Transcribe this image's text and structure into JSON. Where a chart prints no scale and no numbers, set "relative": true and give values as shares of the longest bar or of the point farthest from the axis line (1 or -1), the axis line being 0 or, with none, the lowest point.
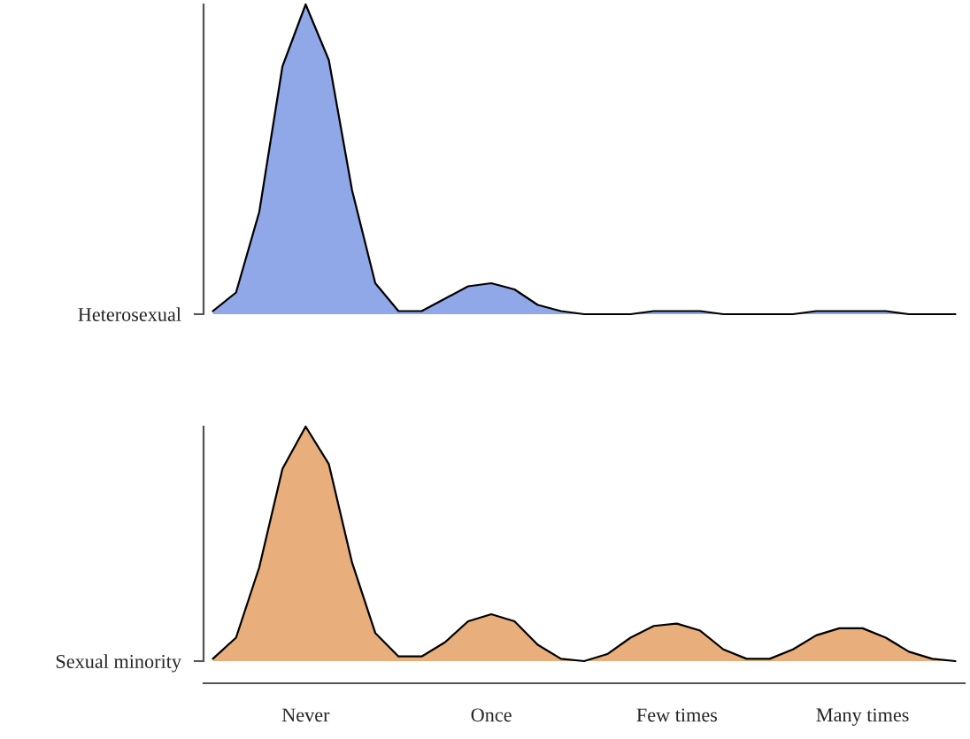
{
  "chart_data": [
    {
      "type": "area",
      "relative": true,
      "tick_labels": false,
      "categories": [
        null,
        null,
        null,
        null,
        null,
        null,
        null,
        null,
        null,
        null,
        null,
        null,
        null,
        null,
        null,
        null,
        null,
        null,
        null,
        null,
        null,
        null,
        null,
        null,
        null,
        null,
        null,
        null,
        null,
        null,
        null,
        null,
        null
      ],
      "series": [
        {
          "name": "Heterosexual",
          "color": "#91a8e8",
          "values": [
            0.01,
            0.07,
            0.33,
            0.8,
            1,
            0.82,
            0.4,
            0.1,
            0.01,
            0.01,
            0.05,
            0.09,
            0.1,
            0.08,
            0.03,
            0.01,
            0.0,
            0.0,
            0.0,
            0.01,
            0.01,
            0.01,
            0.0,
            0.0,
            0.0,
            0.0,
            0.01,
            0.01,
            0.01,
            0.01,
            0.0,
            0.0,
            0.0
          ]
        }
      ]
    },
    {
      "type": "area",
      "relative": true,
      "tick_labels": "x",
      "categories": [
        null,
        null,
        null,
        null,
        "Never",
        null,
        null,
        null,
        null,
        null,
        null,
        null,
        "Once",
        null,
        null,
        null,
        null,
        null,
        null,
        null,
        "Few times",
        null,
        null,
        null,
        null,
        null,
        null,
        null,
        "Many times",
        null,
        null,
        null,
        null
      ],
      "series": [
        {
          "name": "Sexual minority",
          "color": "#e8ae7c",
          "values": [
            0.01,
            0.1,
            0.4,
            0.82,
            1,
            0.84,
            0.42,
            0.12,
            0.02,
            0.02,
            0.08,
            0.17,
            0.2,
            0.17,
            0.07,
            0.01,
            0.0,
            0.03,
            0.1,
            0.15,
            0.16,
            0.13,
            0.05,
            0.01,
            0.01,
            0.05,
            0.11,
            0.14,
            0.14,
            0.1,
            0.04,
            0.01,
            0.0
          ]
        }
      ]
    }
  ]
}
